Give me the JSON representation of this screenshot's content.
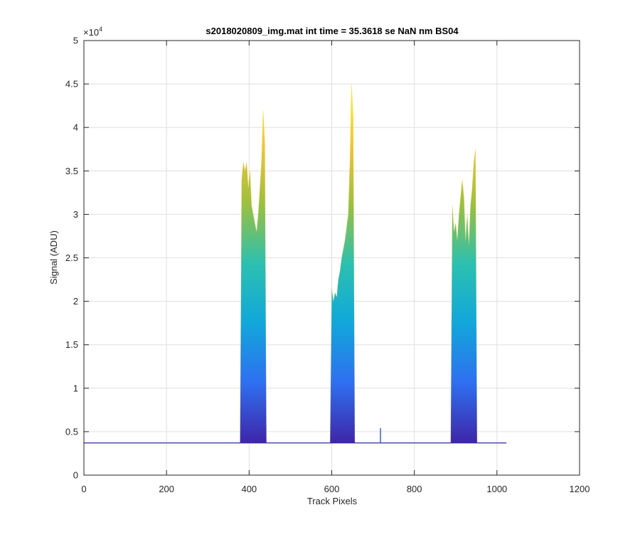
{
  "chart_data": {
    "type": "area",
    "title": "s2018020809_img.mat int time = 35.3618 se  NaN nm BS04",
    "xlabel": "Track Pixels",
    "ylabel": "Signal (ADU)",
    "y_exponent_label": "×10",
    "y_exponent_power": "4",
    "xlim": [
      0,
      1200
    ],
    "ylim": [
      0,
      50000
    ],
    "xticks": [
      0,
      200,
      400,
      600,
      800,
      1000,
      1200
    ],
    "xtick_labels": [
      "0",
      "200",
      "400",
      "600",
      "800",
      "1000",
      "1200"
    ],
    "yticks": [
      0,
      5000,
      10000,
      15000,
      20000,
      25000,
      30000,
      35000,
      40000,
      45000,
      50000
    ],
    "ytick_labels": [
      "0",
      "0.5",
      "1",
      "1.5",
      "2",
      "2.5",
      "3",
      "3.5",
      "4",
      "4.5",
      "5"
    ],
    "grid": true,
    "colormap": [
      "#3e26a8",
      "#2f6ff0",
      "#11a7db",
      "#2cc0b0",
      "#9cc03f",
      "#f4c43a",
      "#f9fb0e"
    ],
    "baseline": 3700,
    "x_extent": [
      0,
      1023
    ],
    "peaks": [
      {
        "name": "peak-1",
        "x": [
          378,
          382,
          386,
          390,
          394,
          398,
          402,
          406,
          410,
          414,
          418,
          422,
          426,
          430,
          434,
          438,
          442
        ],
        "y": [
          3900,
          34000,
          36000,
          35000,
          36000,
          33000,
          35000,
          31000,
          30000,
          29000,
          28000,
          30000,
          33000,
          36000,
          42000,
          38000,
          3900
        ]
      },
      {
        "name": "peak-2",
        "x": [
          596,
          600,
          604,
          608,
          612,
          616,
          620,
          624,
          628,
          632,
          636,
          640,
          644,
          648,
          652,
          656
        ],
        "y": [
          3900,
          21500,
          20000,
          21000,
          20500,
          22500,
          23500,
          25000,
          26000,
          27000,
          28500,
          30000,
          36000,
          45000,
          41000,
          3900
        ]
      },
      {
        "name": "peak-3",
        "x": [
          888,
          892,
          896,
          900,
          904,
          908,
          912,
          916,
          920,
          924,
          928,
          932,
          936,
          940,
          944,
          948,
          952
        ],
        "y": [
          3900,
          31000,
          28000,
          29000,
          27000,
          30000,
          32000,
          34000,
          32000,
          27000,
          30000,
          26500,
          31000,
          33000,
          36000,
          37500,
          3900
        ]
      }
    ],
    "spike": {
      "x": 718,
      "y": 5400
    }
  }
}
